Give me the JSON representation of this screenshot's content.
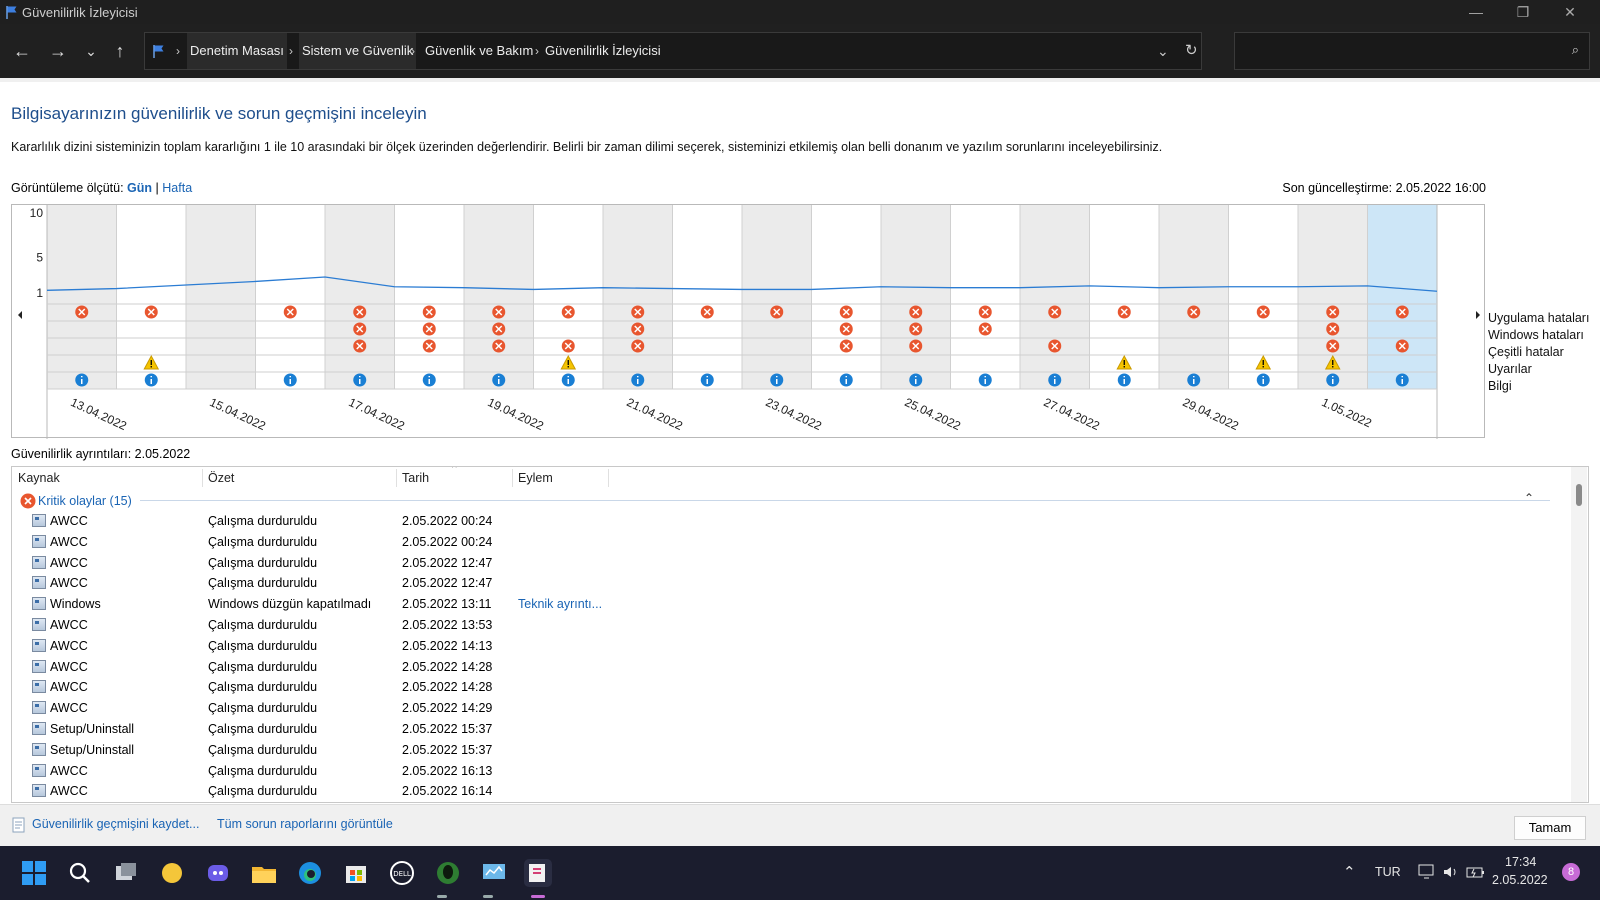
{
  "window": {
    "title": "Güvenilirlik İzleyicisi"
  },
  "address": {
    "crumbs": [
      "Denetim Masası",
      "Sistem ve Güvenlik",
      "Güvenlik ve Bakım",
      "Güvenilirlik İzleyicisi"
    ]
  },
  "page": {
    "heading": "Bilgisayarınızın güvenilirlik ve sorun geçmişini inceleyin",
    "description": "Kararlılık dizini sisteminizin toplam kararlığını 1 ile 10 arasındaki bir ölçek üzerinden değerlendirir. Belirli bir zaman dilimi seçerek, sisteminizi etkilemiş olan belli donanım ve yazılım sorunlarını inceleyebilirsiniz.",
    "view_by_label": "Görüntüleme ölçütü:",
    "view_day": "Gün",
    "view_sep": "|",
    "view_week": "Hafta",
    "last_update": "Son güncelleştirme: 2.05.2022 16:00"
  },
  "chart": {
    "y_ticks": [
      "10",
      "5",
      "1"
    ],
    "categories": [
      "Uygulama hataları",
      "Windows hataları",
      "Çeşitli hatalar",
      "Uyarılar",
      "Bilgi"
    ],
    "date_labels": [
      "13.04.2022",
      "15.04.2022",
      "17.04.2022",
      "19.04.2022",
      "21.04.2022",
      "23.04.2022",
      "25.04.2022",
      "27.04.2022",
      "29.04.2022",
      "1.05.2022"
    ],
    "selected_column": 19,
    "colors": {
      "error": "#e8562f",
      "warning": "#f5c400",
      "info": "#1a7fd4",
      "line": "#2b7cd3",
      "selected": "#cde6f7"
    }
  },
  "chart_data": {
    "type": "line",
    "title": "",
    "ylim": [
      1,
      10
    ],
    "y_ticks": [
      10,
      5,
      1
    ],
    "x": [
      "12.04",
      "13.04",
      "14.04",
      "15.04",
      "16.04",
      "17.04",
      "18.04",
      "19.04",
      "20.04",
      "21.04",
      "22.04",
      "23.04",
      "24.04",
      "25.04",
      "26.04",
      "27.04",
      "28.04",
      "29.04",
      "30.04",
      "1.05",
      "2.05"
    ],
    "stability_index": [
      1.3,
      1.5,
      1.9,
      2.3,
      2.8,
      1.7,
      1.6,
      1.4,
      1.6,
      1.5,
      1.4,
      1.4,
      1.7,
      1.6,
      1.6,
      1.8,
      1.6,
      1.7,
      1.7,
      1.8,
      1.2
    ],
    "columns": 20,
    "markers": {
      "app_errors": [
        0,
        1,
        3,
        4,
        5,
        6,
        7,
        8,
        9,
        10,
        11,
        12,
        13,
        14,
        15,
        16,
        17,
        18,
        19
      ],
      "windows_errors": [
        4,
        5,
        6,
        8,
        11,
        12,
        13,
        18
      ],
      "misc_errors": [
        4,
        5,
        6,
        7,
        8,
        11,
        12,
        14,
        18,
        19
      ],
      "warnings": [
        1,
        7,
        15,
        17,
        18
      ],
      "info": [
        0,
        1,
        3,
        4,
        5,
        6,
        7,
        8,
        9,
        10,
        11,
        12,
        13,
        14,
        15,
        16,
        17,
        18,
        19
      ]
    }
  },
  "details": {
    "label": "Güvenilirlik ayrıntıları: 2.05.2022",
    "columns": [
      "Kaynak",
      "Özet",
      "Tarih",
      "Eylem"
    ],
    "group": "Kritik olaylar (15)",
    "rows": [
      {
        "source": "AWCC",
        "summary": "Çalışma durduruldu",
        "date": "2.05.2022 00:24",
        "action": ""
      },
      {
        "source": "AWCC",
        "summary": "Çalışma durduruldu",
        "date": "2.05.2022 00:24",
        "action": ""
      },
      {
        "source": "AWCC",
        "summary": "Çalışma durduruldu",
        "date": "2.05.2022 12:47",
        "action": ""
      },
      {
        "source": "AWCC",
        "summary": "Çalışma durduruldu",
        "date": "2.05.2022 12:47",
        "action": ""
      },
      {
        "source": "Windows",
        "summary": "Windows düzgün kapatılmadı",
        "date": "2.05.2022 13:11",
        "action": "Teknik ayrıntı..."
      },
      {
        "source": "AWCC",
        "summary": "Çalışma durduruldu",
        "date": "2.05.2022 13:53",
        "action": ""
      },
      {
        "source": "AWCC",
        "summary": "Çalışma durduruldu",
        "date": "2.05.2022 14:13",
        "action": ""
      },
      {
        "source": "AWCC",
        "summary": "Çalışma durduruldu",
        "date": "2.05.2022 14:28",
        "action": ""
      },
      {
        "source": "AWCC",
        "summary": "Çalışma durduruldu",
        "date": "2.05.2022 14:28",
        "action": ""
      },
      {
        "source": "AWCC",
        "summary": "Çalışma durduruldu",
        "date": "2.05.2022 14:29",
        "action": ""
      },
      {
        "source": "Setup/Uninstall",
        "summary": "Çalışma durduruldu",
        "date": "2.05.2022 15:37",
        "action": ""
      },
      {
        "source": "Setup/Uninstall",
        "summary": "Çalışma durduruldu",
        "date": "2.05.2022 15:37",
        "action": ""
      },
      {
        "source": "AWCC",
        "summary": "Çalışma durduruldu",
        "date": "2.05.2022 16:13",
        "action": ""
      },
      {
        "source": "AWCC",
        "summary": "Çalışma durduruldu",
        "date": "2.05.2022 16:14",
        "action": ""
      }
    ]
  },
  "footer": {
    "save_link": "Güvenilirlik geçmişini kaydet...",
    "reports_link": "Tüm sorun raporlarını görüntüle",
    "ok": "Tamam"
  },
  "taskbar": {
    "lang": "TUR",
    "time": "17:34",
    "date": "2.05.2022",
    "badge": "8"
  }
}
